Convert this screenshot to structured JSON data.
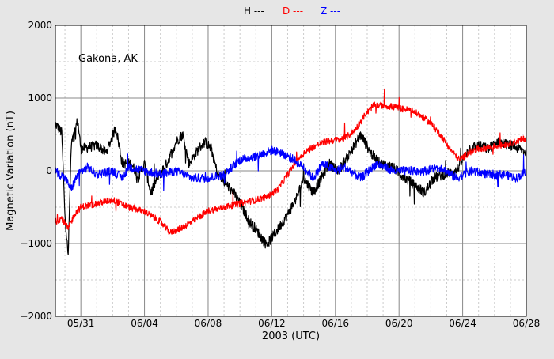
{
  "chart_data": {
    "type": "line",
    "annotation": "Gakona, AK",
    "xlabel": "2003 (UTC)",
    "ylabel": "Magnetic Variation (nT)",
    "x_range_days": [
      -1.6,
      28
    ],
    "ylim": [
      -2000,
      2000
    ],
    "x_ticks": [
      {
        "day": 0,
        "label": "05/31"
      },
      {
        "day": 4,
        "label": "06/04"
      },
      {
        "day": 8,
        "label": "06/08"
      },
      {
        "day": 12,
        "label": "06/12"
      },
      {
        "day": 16,
        "label": "06/16"
      },
      {
        "day": 20,
        "label": "06/20"
      },
      {
        "day": 24,
        "label": "06/24"
      },
      {
        "day": 28,
        "label": "06/28"
      }
    ],
    "y_ticks": [
      -2000,
      -1000,
      0,
      1000,
      2000
    ],
    "y_tick_labels": [
      "−2000",
      "−1000",
      "0",
      "1000",
      "2000"
    ],
    "grid": true,
    "legend_placement": "top-center",
    "series": [
      {
        "name": "H ---",
        "color": "#000000",
        "points": [
          [
            -1.6,
            650
          ],
          [
            -1.2,
            520
          ],
          [
            -1.0,
            -600
          ],
          [
            -0.8,
            -1180
          ],
          [
            -0.6,
            350
          ],
          [
            -0.2,
            700
          ],
          [
            0.0,
            300
          ],
          [
            1.0,
            350
          ],
          [
            1.6,
            250
          ],
          [
            2.2,
            600
          ],
          [
            2.6,
            100
          ],
          [
            3.2,
            100
          ],
          [
            3.6,
            -100
          ],
          [
            4.0,
            100
          ],
          [
            4.4,
            -300
          ],
          [
            4.8,
            -100
          ],
          [
            5.4,
            100
          ],
          [
            6.0,
            400
          ],
          [
            6.4,
            500
          ],
          [
            6.8,
            100
          ],
          [
            7.4,
            300
          ],
          [
            7.8,
            400
          ],
          [
            8.2,
            300
          ],
          [
            8.6,
            -50
          ],
          [
            9.0,
            -150
          ],
          [
            9.6,
            -300
          ],
          [
            10.0,
            -450
          ],
          [
            10.6,
            -700
          ],
          [
            11.0,
            -800
          ],
          [
            11.6,
            -1000
          ],
          [
            11.8,
            -980
          ],
          [
            12.4,
            -800
          ],
          [
            13.0,
            -600
          ],
          [
            13.6,
            -350
          ],
          [
            14.0,
            -100
          ],
          [
            14.6,
            -300
          ],
          [
            15.0,
            -150
          ],
          [
            15.6,
            100
          ],
          [
            16.2,
            0
          ],
          [
            16.8,
            200
          ],
          [
            17.6,
            500
          ],
          [
            18.2,
            250
          ],
          [
            18.8,
            100
          ],
          [
            19.6,
            50
          ],
          [
            20.4,
            -100
          ],
          [
            21.0,
            -200
          ],
          [
            21.6,
            -300
          ],
          [
            22.2,
            -100
          ],
          [
            22.8,
            -50
          ],
          [
            23.6,
            0
          ],
          [
            24.4,
            300
          ],
          [
            25.0,
            350
          ],
          [
            25.6,
            300
          ],
          [
            26.2,
            400
          ],
          [
            27.0,
            350
          ],
          [
            27.6,
            300
          ],
          [
            28.0,
            250
          ]
        ]
      },
      {
        "name": "D ---",
        "color": "#ff0000",
        "points": [
          [
            -1.6,
            -700
          ],
          [
            -1.2,
            -650
          ],
          [
            -0.8,
            -800
          ],
          [
            -0.4,
            -600
          ],
          [
            0.0,
            -500
          ],
          [
            1.0,
            -450
          ],
          [
            2.0,
            -400
          ],
          [
            3.0,
            -500
          ],
          [
            4.0,
            -560
          ],
          [
            5.0,
            -700
          ],
          [
            5.6,
            -850
          ],
          [
            6.2,
            -800
          ],
          [
            7.0,
            -700
          ],
          [
            8.0,
            -550
          ],
          [
            9.0,
            -500
          ],
          [
            10.0,
            -450
          ],
          [
            11.0,
            -400
          ],
          [
            11.8,
            -350
          ],
          [
            12.4,
            -250
          ],
          [
            13.0,
            -50
          ],
          [
            13.6,
            150
          ],
          [
            14.2,
            280
          ],
          [
            14.8,
            350
          ],
          [
            15.4,
            400
          ],
          [
            16.0,
            420
          ],
          [
            16.6,
            450
          ],
          [
            17.2,
            550
          ],
          [
            17.8,
            750
          ],
          [
            18.4,
            900
          ],
          [
            19.0,
            900
          ],
          [
            19.6,
            880
          ],
          [
            20.2,
            850
          ],
          [
            20.8,
            830
          ],
          [
            21.4,
            750
          ],
          [
            22.0,
            650
          ],
          [
            22.6,
            500
          ],
          [
            23.2,
            300
          ],
          [
            23.8,
            150
          ],
          [
            24.4,
            250
          ],
          [
            25.0,
            300
          ],
          [
            25.6,
            320
          ],
          [
            26.4,
            350
          ],
          [
            27.0,
            380
          ],
          [
            28.0,
            450
          ]
        ]
      },
      {
        "name": "Z ---",
        "color": "#0000ff",
        "points": [
          [
            -1.6,
            0
          ],
          [
            -1.0,
            -100
          ],
          [
            -0.6,
            -250
          ],
          [
            -0.2,
            -50
          ],
          [
            0.4,
            50
          ],
          [
            1.0,
            -50
          ],
          [
            2.0,
            0
          ],
          [
            2.6,
            -100
          ],
          [
            3.0,
            50
          ],
          [
            4.0,
            0
          ],
          [
            5.0,
            -50
          ],
          [
            6.0,
            0
          ],
          [
            7.0,
            -100
          ],
          [
            8.0,
            -100
          ],
          [
            9.0,
            -50
          ],
          [
            10.0,
            150
          ],
          [
            11.0,
            200
          ],
          [
            12.0,
            280
          ],
          [
            12.6,
            250
          ],
          [
            13.4,
            150
          ],
          [
            14.0,
            50
          ],
          [
            14.6,
            -100
          ],
          [
            15.2,
            100
          ],
          [
            16.0,
            0
          ],
          [
            16.6,
            50
          ],
          [
            17.6,
            -100
          ],
          [
            18.6,
            100
          ],
          [
            19.6,
            0
          ],
          [
            20.6,
            0
          ],
          [
            21.6,
            0
          ],
          [
            22.6,
            50
          ],
          [
            23.6,
            -100
          ],
          [
            24.6,
            0
          ],
          [
            25.6,
            -50
          ],
          [
            26.6,
            -50
          ],
          [
            27.4,
            -100
          ],
          [
            28.0,
            0
          ]
        ]
      }
    ]
  }
}
